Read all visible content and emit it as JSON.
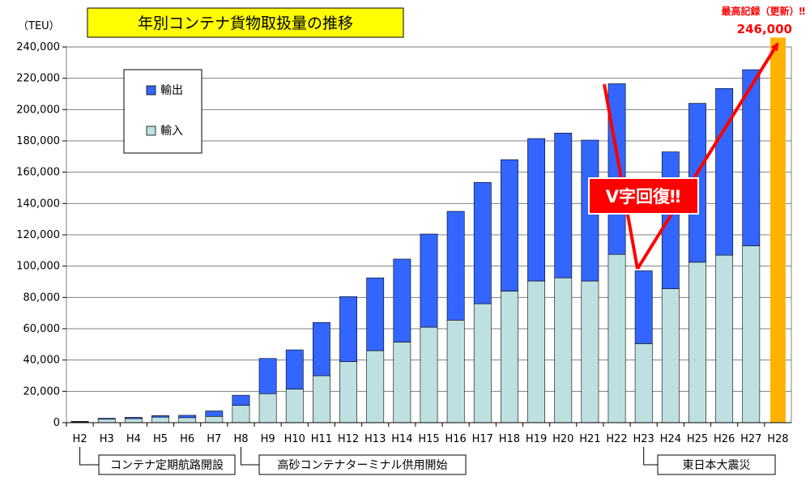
{
  "chart_data": {
    "type": "bar",
    "stacked": true,
    "title": "年別コンテナ貨物取扱量の推移",
    "ylabel": "（TEU）",
    "ylim": [
      0,
      240000
    ],
    "ytick_step": 20000,
    "ytick_labels": [
      "0",
      "20,000",
      "40,000",
      "60,000",
      "80,000",
      "100,000",
      "120,000",
      "140,000",
      "160,000",
      "180,000",
      "200,000",
      "220,000",
      "240,000"
    ],
    "categories": [
      "H2",
      "H3",
      "H4",
      "H5",
      "H6",
      "H7",
      "H8",
      "H9",
      "H10",
      "H11",
      "H12",
      "H13",
      "H14",
      "H15",
      "H16",
      "H17",
      "H18",
      "H19",
      "H20",
      "H21",
      "H22",
      "H23",
      "H24",
      "H25",
      "H26",
      "H27",
      "H28"
    ],
    "series": [
      {
        "name": "輸入",
        "color": "#bfe0e0",
        "values": [
          500,
          2200,
          2600,
          3500,
          3200,
          4000,
          11000,
          18500,
          21500,
          30000,
          39000,
          46000,
          51500,
          61000,
          65500,
          76000,
          84000,
          90500,
          92500,
          90500,
          107500,
          50500,
          85500,
          102500,
          107000,
          113000,
          null
        ]
      },
      {
        "name": "輸出",
        "color": "#3366ff",
        "values": [
          300,
          600,
          800,
          1000,
          1500,
          3500,
          6500,
          22500,
          25000,
          34000,
          41500,
          46500,
          53000,
          59500,
          69500,
          77500,
          84000,
          91000,
          92500,
          90000,
          109000,
          46500,
          87500,
          101500,
          106500,
          112500,
          null
        ]
      }
    ],
    "highlight": {
      "category": "H28",
      "value": 246000,
      "color": "#ffb300"
    },
    "legend": {
      "position": "upper-left",
      "entries": [
        "輸出",
        "輸入"
      ]
    },
    "annotations": {
      "record_label": "最高記録（更新）‼",
      "record_value": "246,000",
      "v_recovery": "V字回復‼",
      "milestones": [
        {
          "category": "H2",
          "text": "コンテナ定期航路開設"
        },
        {
          "category": "H8",
          "text": "高砂コンテナターミナル供用開始"
        },
        {
          "category": "H23",
          "text": "東日本大震災"
        }
      ]
    }
  }
}
